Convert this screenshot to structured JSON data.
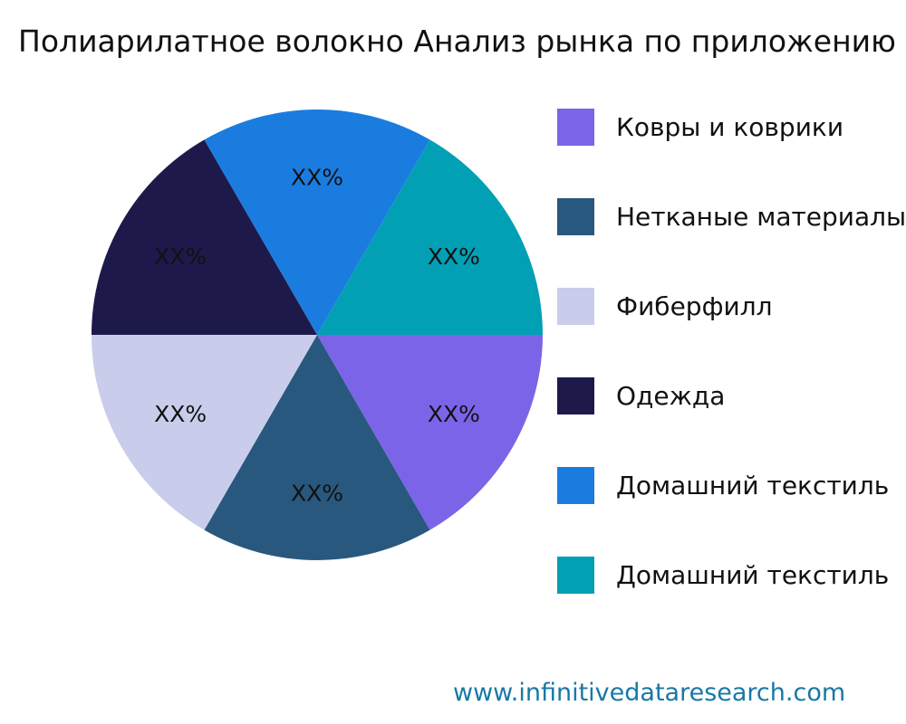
{
  "title": "Полиарилатное волокно Анализ рынка по приложению",
  "footer": {
    "website": "www.infinitivedataresearch.com",
    "color": "#1878a8"
  },
  "chart_data": {
    "type": "pie",
    "title": "Полиарилатное волокно Анализ рынка по приложению",
    "slices": [
      {
        "label": "Ковры и коврики",
        "value": 16.67,
        "display": "XX%",
        "color": "#7c64e8"
      },
      {
        "label": "Нетканые материалы",
        "value": 16.67,
        "display": "XX%",
        "color": "#29587e"
      },
      {
        "label": "Фиберфилл",
        "value": 16.67,
        "display": "XX%",
        "color": "#c9cdeb"
      },
      {
        "label": "Одежда",
        "value": 16.67,
        "display": "XX%",
        "color": "#1d1a4b"
      },
      {
        "label": "Домашний текстиль",
        "value": 16.67,
        "display": "XX%",
        "color": "#1b7ce0"
      },
      {
        "label": "Домашний текстиль",
        "value": 16.67,
        "display": "XX%",
        "color": "#02a0b4"
      }
    ],
    "start_angle_deg": 0,
    "direction": "clockwise",
    "legend_position": "right",
    "labels_inside": true
  }
}
